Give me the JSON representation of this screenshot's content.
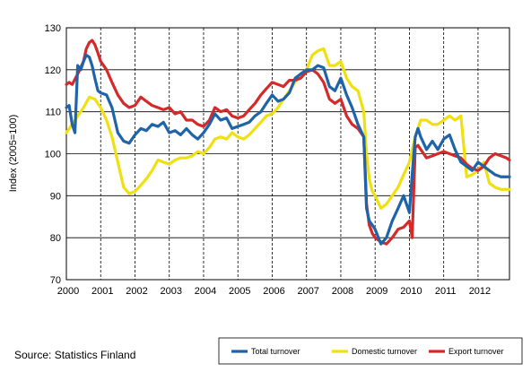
{
  "source": "Source: Statistics Finland",
  "chart_data": {
    "type": "line",
    "ylabel": "Index (2005=100)",
    "xlabel": "",
    "ylim": [
      70,
      130
    ],
    "yticks": [
      70,
      80,
      90,
      100,
      110,
      120,
      130
    ],
    "xlim": [
      2000,
      2012.917
    ],
    "xticks": [
      2000,
      2001,
      2002,
      2003,
      2004,
      2005,
      2006,
      2007,
      2008,
      2009,
      2010,
      2011,
      2012
    ],
    "xtick_labels": [
      "2000",
      "2001",
      "2002",
      "2003",
      "2004",
      "2005",
      "2006",
      "2007",
      "2008",
      "2009",
      "2010",
      "2011",
      "2012"
    ],
    "grid": {
      "horizontal": "solid",
      "vertical": "dashed"
    },
    "legend_position": "bottom-right",
    "series": [
      {
        "name": "Total turnover",
        "color": "#1f64a8",
        "x": [
          2000.0,
          2000.08,
          2000.17,
          2000.25,
          2000.33,
          2000.42,
          2000.5,
          2000.58,
          2000.67,
          2000.75,
          2000.83,
          2000.92,
          2001.0,
          2001.17,
          2001.33,
          2001.5,
          2001.67,
          2001.83,
          2002.0,
          2002.17,
          2002.33,
          2002.5,
          2002.67,
          2002.83,
          2003.0,
          2003.17,
          2003.33,
          2003.5,
          2003.67,
          2003.83,
          2004.0,
          2004.17,
          2004.33,
          2004.5,
          2004.67,
          2004.83,
          2005.0,
          2005.17,
          2005.33,
          2005.5,
          2005.67,
          2005.83,
          2006.0,
          2006.17,
          2006.33,
          2006.5,
          2006.67,
          2006.83,
          2007.0,
          2007.17,
          2007.33,
          2007.5,
          2007.67,
          2007.83,
          2008.0,
          2008.17,
          2008.33,
          2008.5,
          2008.67,
          2008.75,
          2008.83,
          2008.92,
          2009.0,
          2009.17,
          2009.33,
          2009.5,
          2009.67,
          2009.83,
          2010.0,
          2010.08,
          2010.17,
          2010.25,
          2010.33,
          2010.5,
          2010.67,
          2010.83,
          2011.0,
          2011.17,
          2011.33,
          2011.5,
          2011.67,
          2011.83,
          2012.0,
          2012.17,
          2012.33,
          2012.5,
          2012.67,
          2012.83,
          2012.917
        ],
        "values": [
          111,
          111.5,
          107,
          105,
          121,
          120,
          122,
          123.5,
          123,
          121,
          118,
          115,
          114.5,
          114,
          111,
          105,
          103,
          102.5,
          104.5,
          106,
          105.5,
          107,
          106.5,
          107.5,
          105,
          105.5,
          104.5,
          106,
          104.5,
          103.5,
          105,
          107,
          109.5,
          108,
          108.5,
          106,
          106.5,
          107,
          107.5,
          109,
          110,
          112,
          114,
          112.5,
          113,
          114.5,
          118,
          119,
          120,
          120,
          121,
          120.5,
          116,
          115,
          118,
          114,
          111,
          107,
          104,
          87,
          84,
          83,
          82,
          78.5,
          80,
          84,
          87,
          90,
          86,
          95,
          104,
          106,
          104,
          101,
          103,
          101,
          103.5,
          104.5,
          101,
          98,
          97,
          96,
          98,
          97,
          96,
          95,
          94.5,
          94.5,
          94.5
        ]
      },
      {
        "name": "Domestic turnover",
        "color": "#f0e010",
        "x": [
          2000.0,
          2000.17,
          2000.33,
          2000.5,
          2000.67,
          2000.83,
          2001.0,
          2001.17,
          2001.33,
          2001.5,
          2001.67,
          2001.83,
          2002.0,
          2002.17,
          2002.33,
          2002.5,
          2002.67,
          2002.83,
          2003.0,
          2003.17,
          2003.33,
          2003.5,
          2003.67,
          2003.83,
          2004.0,
          2004.17,
          2004.33,
          2004.5,
          2004.67,
          2004.83,
          2005.0,
          2005.17,
          2005.33,
          2005.5,
          2005.67,
          2005.83,
          2006.0,
          2006.17,
          2006.33,
          2006.5,
          2006.67,
          2006.83,
          2007.0,
          2007.17,
          2007.33,
          2007.5,
          2007.67,
          2007.83,
          2008.0,
          2008.17,
          2008.33,
          2008.5,
          2008.67,
          2008.75,
          2008.83,
          2008.92,
          2009.0,
          2009.17,
          2009.33,
          2009.5,
          2009.67,
          2009.83,
          2010.0,
          2010.17,
          2010.33,
          2010.5,
          2010.67,
          2010.83,
          2011.0,
          2011.17,
          2011.33,
          2011.5,
          2011.67,
          2011.83,
          2012.0,
          2012.17,
          2012.33,
          2012.5,
          2012.67,
          2012.83,
          2012.917
        ],
        "values": [
          105,
          107,
          109,
          111,
          113.5,
          113,
          111,
          108,
          104,
          98,
          92,
          90.5,
          91,
          92.5,
          94,
          96,
          98.5,
          98,
          97.5,
          98.5,
          99,
          99,
          99.5,
          100.5,
          100,
          101.5,
          103.5,
          104,
          103.5,
          105,
          104,
          103.5,
          104.5,
          106,
          107.5,
          109,
          109.5,
          111,
          113,
          115,
          117,
          119,
          120,
          123.5,
          124.5,
          125,
          121,
          121,
          122,
          118,
          116,
          115,
          110,
          100,
          94,
          91,
          90,
          87,
          88,
          90,
          92,
          95,
          98,
          104,
          108,
          108,
          107,
          107,
          108,
          109,
          108,
          109,
          94.5,
          95,
          96,
          98,
          93,
          92,
          91.5,
          91.5,
          91.5
        ]
      },
      {
        "name": "Export turnover",
        "color": "#d42a2a",
        "x": [
          2000.0,
          2000.08,
          2000.17,
          2000.33,
          2000.5,
          2000.58,
          2000.67,
          2000.75,
          2000.83,
          2000.92,
          2001.0,
          2001.17,
          2001.33,
          2001.5,
          2001.67,
          2001.83,
          2002.0,
          2002.17,
          2002.33,
          2002.5,
          2002.67,
          2002.83,
          2003.0,
          2003.17,
          2003.33,
          2003.5,
          2003.67,
          2003.83,
          2004.0,
          2004.17,
          2004.33,
          2004.5,
          2004.67,
          2004.83,
          2005.0,
          2005.17,
          2005.33,
          2005.5,
          2005.67,
          2005.83,
          2006.0,
          2006.17,
          2006.33,
          2006.5,
          2006.67,
          2006.83,
          2007.0,
          2007.17,
          2007.33,
          2007.5,
          2007.67,
          2007.83,
          2008.0,
          2008.17,
          2008.33,
          2008.5,
          2008.67,
          2008.75,
          2008.83,
          2008.92,
          2009.0,
          2009.17,
          2009.33,
          2009.5,
          2009.67,
          2009.83,
          2010.0,
          2010.08,
          2010.17,
          2010.25,
          2010.33,
          2010.5,
          2010.67,
          2010.83,
          2011.0,
          2011.17,
          2011.33,
          2011.5,
          2011.67,
          2011.83,
          2012.0,
          2012.17,
          2012.33,
          2012.5,
          2012.67,
          2012.83,
          2012.917
        ],
        "values": [
          116.5,
          117,
          116.5,
          119,
          122,
          125,
          126.5,
          127,
          126,
          124,
          122,
          120,
          117,
          114,
          112,
          111,
          111.5,
          113.5,
          112.5,
          111.5,
          111,
          110.5,
          111,
          109.5,
          110,
          108,
          108,
          107,
          106.5,
          108,
          111,
          110,
          110.5,
          109,
          108.5,
          109,
          110.5,
          112,
          114,
          115.5,
          117,
          116.5,
          116,
          117.5,
          117.5,
          118,
          119.5,
          120,
          119,
          117,
          113,
          112,
          113,
          109,
          107,
          106,
          104,
          88,
          83,
          81,
          80,
          79,
          78.5,
          80,
          82,
          82.5,
          84,
          80,
          101.5,
          102,
          101,
          99,
          99.5,
          100,
          100.5,
          100,
          99.5,
          99,
          97.5,
          96.5,
          96,
          97,
          99,
          100,
          99.5,
          99,
          98.5
        ]
      }
    ]
  }
}
